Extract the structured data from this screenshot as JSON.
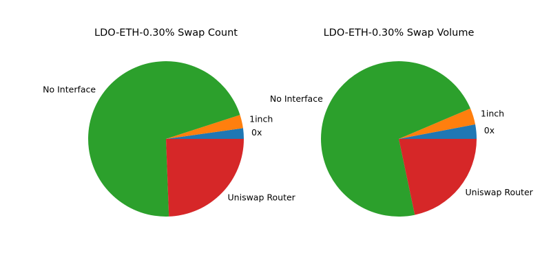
{
  "chart_data": [
    {
      "type": "pie",
      "title": "LDO-ETH-0.30% Swap Count",
      "slices": [
        {
          "label": "0x",
          "value": 2.2,
          "color": "#1f77b4"
        },
        {
          "label": "1inch",
          "value": 2.8,
          "color": "#ff7f0e"
        },
        {
          "label": "No Interface",
          "value": 70.6,
          "color": "#2ca02c"
        },
        {
          "label": "Uniswap Router",
          "value": 24.4,
          "color": "#d62728"
        }
      ],
      "start_angle_deg": 0,
      "direction": "counterclockwise"
    },
    {
      "type": "pie",
      "title": "LDO-ETH-0.30% Swap Volume",
      "slices": [
        {
          "label": "0x",
          "value": 3.0,
          "color": "#1f77b4"
        },
        {
          "label": "1inch",
          "value": 3.4,
          "color": "#ff7f0e"
        },
        {
          "label": "No Interface",
          "value": 71.9,
          "color": "#2ca02c"
        },
        {
          "label": "Uniswap Router",
          "value": 21.7,
          "color": "#d62728"
        }
      ],
      "start_angle_deg": 0,
      "direction": "counterclockwise"
    }
  ]
}
